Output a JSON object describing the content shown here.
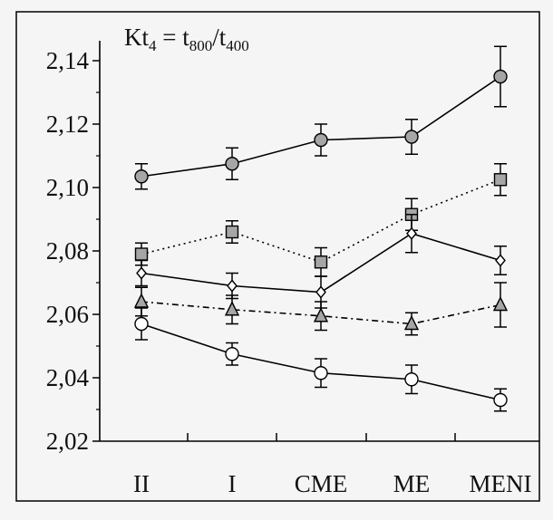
{
  "chart_data": {
    "type": "line",
    "title": "Kt4 = t800/t400",
    "title_parts": {
      "lhs_base": "Kt",
      "lhs_sub": "4",
      "eq": " = ",
      "num_base": "t",
      "num_sub": "800",
      "slash": "/",
      "den_base": "t",
      "den_sub": "400"
    },
    "xlabel": "",
    "ylabel": "",
    "categories": [
      "II",
      "I",
      "CME",
      "ME",
      "MENI"
    ],
    "ylim": [
      2.02,
      2.145
    ],
    "yticks": [
      2.02,
      2.04,
      2.06,
      2.08,
      2.1,
      2.12,
      2.14
    ],
    "ytick_labels": [
      "2,02",
      "2,04",
      "2,06",
      "2,08",
      "2,10",
      "2,12",
      "2,14"
    ],
    "grid": false,
    "legend": "none",
    "series": [
      {
        "marker": "circle",
        "fill": "#a6a6a6",
        "line": "solid",
        "values": [
          2.1035,
          2.1075,
          2.115,
          2.116,
          2.135
        ],
        "errors": [
          0.004,
          0.005,
          0.005,
          0.0055,
          0.0095
        ]
      },
      {
        "marker": "square",
        "fill": "#a6a6a6",
        "line": "dotted",
        "values": [
          2.079,
          2.086,
          2.0765,
          2.0915,
          2.1025
        ],
        "errors": [
          0.0035,
          0.0035,
          0.0045,
          0.005,
          0.005
        ]
      },
      {
        "marker": "diamond",
        "fill": "#ffffff",
        "line": "solid",
        "values": [
          2.073,
          2.069,
          2.067,
          2.0855,
          2.077
        ],
        "errors": [
          0.004,
          0.004,
          0.005,
          0.006,
          0.0045
        ]
      },
      {
        "marker": "triangle",
        "fill": "#a6a6a6",
        "line": "dashdot",
        "values": [
          2.064,
          2.0615,
          2.0595,
          2.057,
          2.063
        ],
        "errors": [
          0.0045,
          0.0045,
          0.0045,
          0.0035,
          0.007
        ]
      },
      {
        "marker": "circle",
        "fill": "#ffffff",
        "line": "solid",
        "values": [
          2.057,
          2.0475,
          2.0415,
          2.0395,
          2.033
        ],
        "errors": [
          0.005,
          0.0035,
          0.0045,
          0.0045,
          0.0035
        ]
      }
    ],
    "colors": {
      "line": "#000000",
      "background": "#f5f5f5",
      "frame": "#000000"
    }
  }
}
